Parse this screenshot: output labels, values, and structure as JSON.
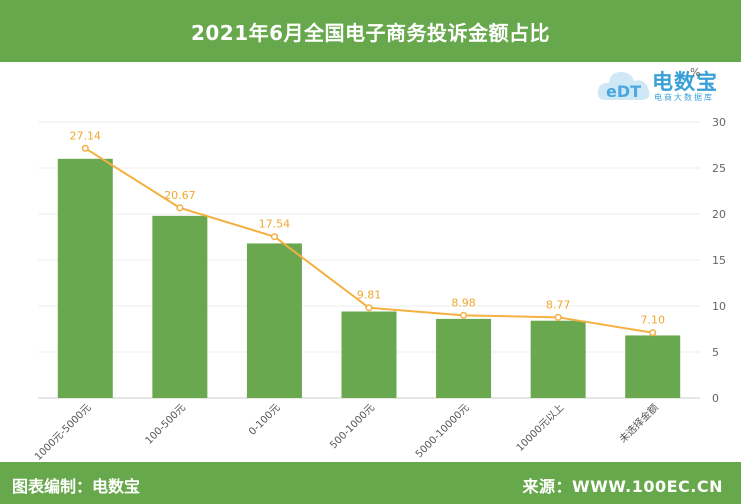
{
  "header": {
    "title": "2021年6月全国电子商务投诉金额占比"
  },
  "logo": {
    "brand": "电数宝",
    "sub": "电商大数据库",
    "mark": "eDT"
  },
  "footer": {
    "left": "图表编制：电数宝",
    "right": "来源：WWW.100EC.CN"
  },
  "colors": {
    "bar": "#6aa84f",
    "line": "#f4b040",
    "header": "#68a84d"
  },
  "chart_data": {
    "type": "bar",
    "categories": [
      "1000元-5000元",
      "100-500元",
      "0-100元",
      "500-1000元",
      "5000-10000元",
      "10000元以上",
      "未选择金额"
    ],
    "series": [
      {
        "type": "bar",
        "values": [
          26.0,
          19.8,
          16.8,
          9.4,
          8.6,
          8.4,
          6.8
        ]
      },
      {
        "type": "line",
        "values": [
          27.14,
          20.67,
          17.54,
          9.81,
          8.98,
          8.77,
          7.1
        ]
      }
    ],
    "data_labels": [
      "27.14",
      "20.67",
      "17.54",
      "9.81",
      "8.98",
      "8.77",
      "7.10"
    ],
    "y_axis": {
      "position": "right",
      "unit": "%",
      "ylim": [
        0,
        30
      ],
      "ticks": [
        0,
        5,
        10,
        15,
        20,
        25,
        30
      ]
    },
    "grid": true,
    "legend": false
  }
}
